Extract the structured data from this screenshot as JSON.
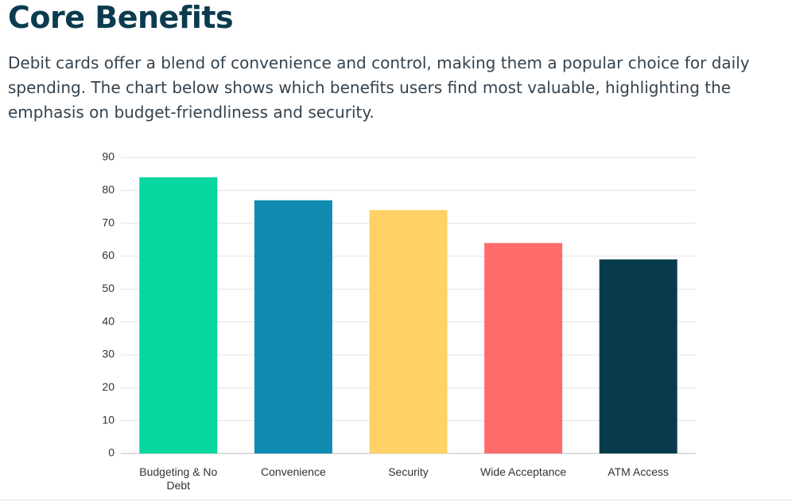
{
  "header": {
    "title": "Core Benefits",
    "text": "Debit cards offer a blend of convenience and control, making them a popular choice for daily spending. The chart below shows which benefits users find most valuable, highlighting the emphasis on budget-friendliness and security."
  },
  "chart_data": {
    "type": "bar",
    "categories": [
      "Budgeting & No Debt",
      "Convenience",
      "Security",
      "Wide Acceptance",
      "ATM Access"
    ],
    "values": [
      84,
      77,
      74,
      64,
      59
    ],
    "colors": [
      "#06d6a0",
      "#118ab2",
      "#ffd166",
      "#ff6b6b",
      "#073b4c"
    ],
    "ylim": [
      0,
      90
    ],
    "yticks": [
      0,
      10,
      20,
      30,
      40,
      50,
      60,
      70,
      80,
      90
    ],
    "grid": true
  }
}
